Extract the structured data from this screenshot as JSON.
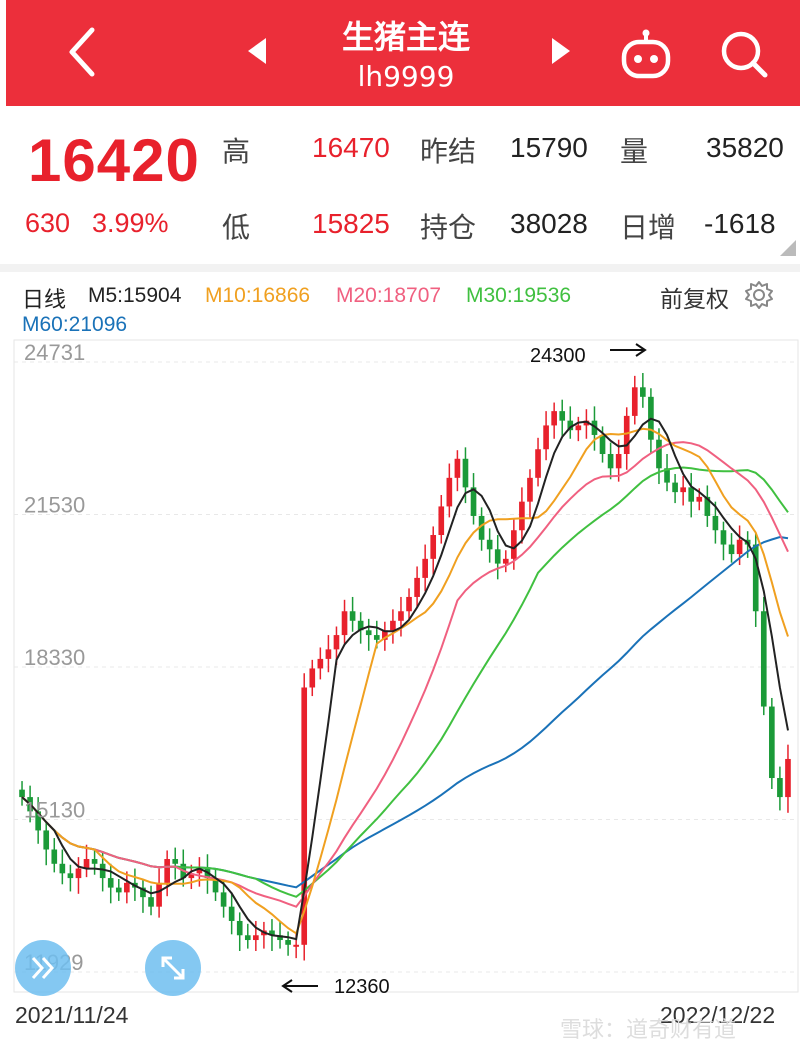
{
  "header": {
    "title": "生猪主连",
    "code": "lh9999",
    "color": "#ec2f3b"
  },
  "quote": {
    "price": "16420",
    "change": "630",
    "change_pct": "3.99%",
    "high_label": "高",
    "high": "16470",
    "low_label": "低",
    "low": "15825",
    "prev_settle_label": "昨结",
    "prev_settle": "15790",
    "open_interest_label": "持仓",
    "open_interest": "38028",
    "volume_label": "量",
    "volume": "35820",
    "daily_change_label": "日增",
    "daily_change": "-1618"
  },
  "chart_header": {
    "period": "日线",
    "ma5": "M5:15904",
    "ma10": "M10:16866",
    "ma20": "M20:18707",
    "ma30": "M30:19536",
    "ma60": "M60:21096",
    "adjust": "前复权",
    "colors": {
      "ma5": "#222222",
      "ma10": "#f0a020",
      "ma20": "#f06080",
      "ma30": "#40c040",
      "ma60": "#1a72b8"
    }
  },
  "chart_data": {
    "type": "candlestick",
    "y_ticks": [
      "24731",
      "21530",
      "18330",
      "15130",
      "11929"
    ],
    "ylim": [
      11929,
      24731
    ],
    "start_date": "2021/11/24",
    "end_date": "2022/12/22",
    "annotation_high": "24300",
    "annotation_low": "12360",
    "close": [
      15600,
      15300,
      14900,
      14500,
      14200,
      14000,
      13900,
      14100,
      14300,
      14200,
      13900,
      13700,
      13600,
      13800,
      13700,
      13500,
      13300,
      13800,
      14300,
      14200,
      13900,
      14000,
      14100,
      13900,
      13600,
      13300,
      13000,
      12700,
      12600,
      12700,
      12800,
      12700,
      12600,
      12500,
      12500,
      17900,
      18300,
      18500,
      18700,
      19000,
      19500,
      19300,
      19100,
      19000,
      18900,
      19100,
      19300,
      19500,
      19800,
      20200,
      20600,
      21100,
      21700,
      22300,
      22700,
      22100,
      21500,
      21000,
      20800,
      20500,
      20600,
      21200,
      21800,
      22300,
      22900,
      23400,
      23700,
      23500,
      23300,
      23400,
      23500,
      23200,
      22800,
      22500,
      22800,
      23600,
      24200,
      24000,
      23100,
      22500,
      22200,
      22000,
      22100,
      21800,
      21900,
      21500,
      21200,
      20900,
      20700,
      21000,
      20900,
      19500,
      17500,
      16000,
      15600,
      16400
    ]
  },
  "buttons": {
    "expand": "expand",
    "fullscreen": "fullscreen"
  },
  "watermark": "雪球：道奇财有道"
}
